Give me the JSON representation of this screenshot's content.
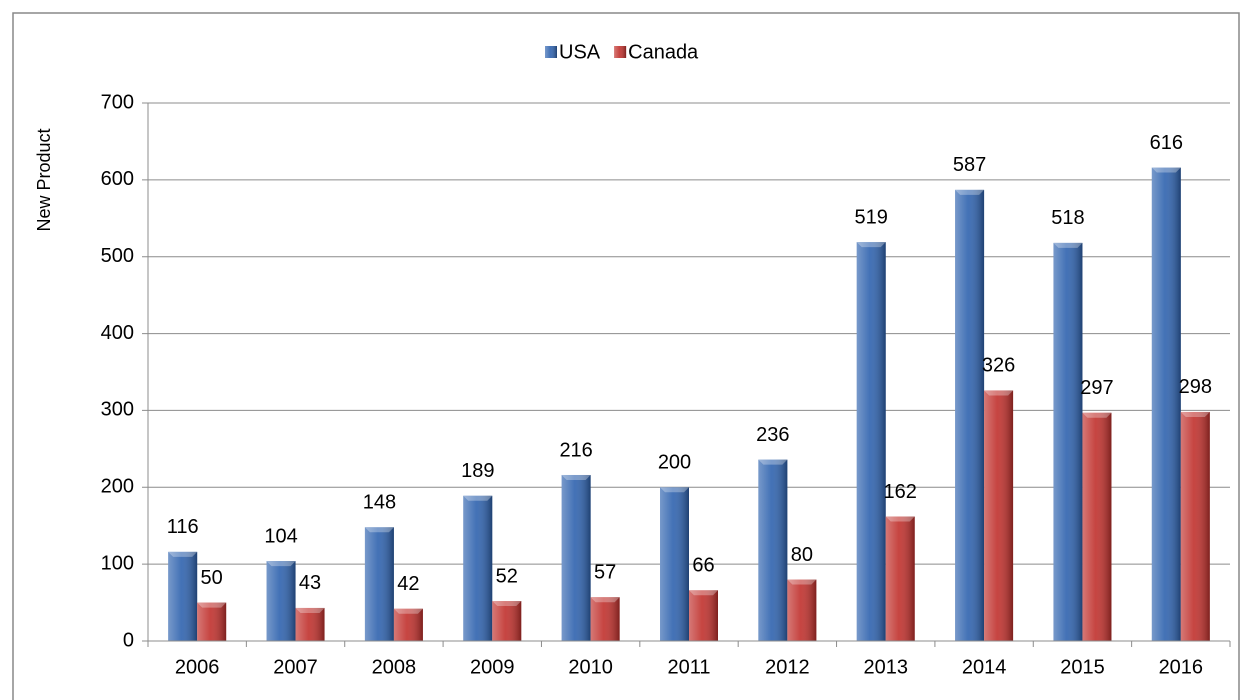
{
  "chart_data": {
    "type": "bar",
    "categories": [
      "2006",
      "2007",
      "2008",
      "2009",
      "2010",
      "2011",
      "2012",
      "2013",
      "2014",
      "2015",
      "2016"
    ],
    "series": [
      {
        "name": "USA",
        "color": "#2e62ae",
        "values": [
          116,
          104,
          148,
          189,
          216,
          200,
          236,
          519,
          587,
          518,
          616
        ]
      },
      {
        "name": "Canada",
        "color": "#c0302c",
        "values": [
          50,
          43,
          42,
          52,
          57,
          66,
          80,
          162,
          326,
          297,
          298
        ]
      }
    ],
    "y_label": "New Product",
    "ylim": [
      0,
      700
    ],
    "yticks": [
      0,
      100,
      200,
      300,
      400,
      500,
      600,
      700
    ],
    "grid": true,
    "legend": "top"
  }
}
